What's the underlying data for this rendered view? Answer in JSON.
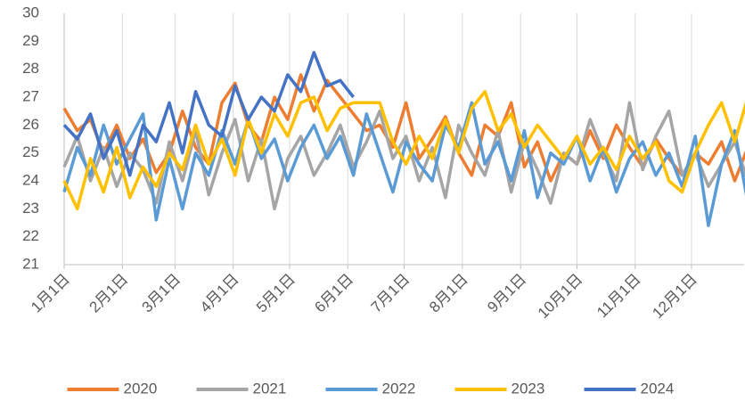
{
  "chart_data": {
    "type": "line",
    "x": [
      1,
      8,
      15,
      22,
      29,
      36,
      43,
      50,
      57,
      64,
      71,
      78,
      85,
      92,
      99,
      106,
      113,
      120,
      127,
      134,
      141,
      148,
      155,
      162,
      169,
      176,
      183,
      190,
      197,
      204,
      211,
      218,
      225,
      232,
      239,
      246,
      253,
      260,
      267,
      274,
      281,
      288,
      295,
      302,
      309,
      316,
      323,
      330,
      337,
      344,
      351,
      358,
      365
    ],
    "xlim": [
      1,
      363
    ],
    "xticks": [
      {
        "value": 1,
        "label": "1月1日"
      },
      {
        "value": 32,
        "label": "2月1日"
      },
      {
        "value": 60,
        "label": "3月1日"
      },
      {
        "value": 91,
        "label": "4月1日"
      },
      {
        "value": 121,
        "label": "5月1日"
      },
      {
        "value": 152,
        "label": "6月1日"
      },
      {
        "value": 182,
        "label": "7月1日"
      },
      {
        "value": 213,
        "label": "8月1日"
      },
      {
        "value": 244,
        "label": "9月1日"
      },
      {
        "value": 274,
        "label": "10月1日"
      },
      {
        "value": 305,
        "label": "11月1日"
      },
      {
        "value": 335,
        "label": "12月1日"
      }
    ],
    "ylim": [
      21,
      30
    ],
    "yticks": [
      21,
      22,
      23,
      24,
      25,
      26,
      27,
      28,
      29,
      30
    ],
    "grid": "x",
    "legend": "bottom",
    "series": [
      {
        "name": "2020",
        "color": "#ED7D31",
        "values": [
          26.6,
          25.8,
          26.2,
          25.0,
          26.0,
          24.8,
          25.5,
          24.3,
          25.0,
          26.5,
          25.2,
          24.6,
          26.8,
          27.5,
          26.0,
          25.4,
          27.0,
          26.2,
          27.8,
          26.5,
          27.6,
          27.0,
          26.4,
          25.8,
          26.0,
          25.2,
          26.8,
          24.8,
          25.5,
          26.3,
          25.0,
          24.2,
          26.0,
          25.6,
          26.8,
          24.5,
          25.4,
          24.0,
          25.0,
          24.6,
          25.8,
          24.8,
          26.0,
          25.2,
          24.5,
          25.5,
          24.8,
          24.2,
          25.0,
          24.6,
          25.4,
          24.0,
          25.2
        ]
      },
      {
        "name": "2021",
        "color": "#A5A5A5",
        "values": [
          24.5,
          25.6,
          24.0,
          25.2,
          23.8,
          25.0,
          24.4,
          23.2,
          25.4,
          24.0,
          25.8,
          23.5,
          25.0,
          26.2,
          24.0,
          25.5,
          23.0,
          24.8,
          25.6,
          24.2,
          25.0,
          26.0,
          24.5,
          25.4,
          26.5,
          24.8,
          25.6,
          24.0,
          25.2,
          23.4,
          26.0,
          25.0,
          24.2,
          25.8,
          23.6,
          25.4,
          24.4,
          23.2,
          25.0,
          24.6,
          26.2,
          25.0,
          24.0,
          26.8,
          24.4,
          25.6,
          26.5,
          24.2,
          25.0,
          23.8,
          24.6,
          25.4,
          24.0
        ]
      },
      {
        "name": "2022",
        "color": "#5B9BD5",
        "values": [
          23.6,
          25.2,
          24.2,
          26.0,
          24.6,
          25.5,
          26.4,
          22.6,
          24.8,
          23.0,
          25.0,
          24.2,
          25.8,
          24.6,
          26.2,
          24.8,
          25.5,
          24.0,
          25.2,
          26.0,
          24.8,
          25.6,
          24.2,
          26.4,
          25.0,
          23.6,
          25.4,
          24.6,
          24.0,
          26.0,
          25.2,
          26.8,
          24.6,
          25.4,
          24.0,
          25.8,
          23.4,
          25.0,
          24.6,
          25.6,
          24.0,
          25.2,
          23.6,
          24.8,
          25.4,
          24.2,
          25.0,
          23.8,
          25.6,
          22.4,
          24.6,
          25.8,
          23.2
        ]
      },
      {
        "name": "2023",
        "color": "#FFC000",
        "values": [
          24.0,
          23.0,
          24.8,
          23.6,
          25.2,
          23.4,
          24.5,
          23.8,
          25.0,
          24.4,
          26.0,
          24.6,
          25.5,
          24.2,
          26.2,
          25.0,
          26.4,
          25.6,
          26.8,
          27.0,
          25.8,
          26.6,
          26.8,
          26.8,
          26.8,
          25.4,
          24.6,
          25.6,
          24.8,
          26.2,
          25.0,
          26.6,
          27.2,
          25.8,
          26.4,
          25.2,
          26.0,
          25.4,
          24.8,
          25.6,
          24.6,
          25.2,
          24.4,
          25.6,
          24.8,
          25.4,
          24.0,
          23.6,
          25.0,
          26.0,
          26.8,
          25.4,
          27.0
        ]
      },
      {
        "name": "2024",
        "color": "#4472C4",
        "values": [
          26.0,
          25.5,
          26.4,
          24.8,
          25.8,
          24.2,
          26.0,
          25.4,
          26.8,
          25.0,
          27.2,
          26.0,
          25.6,
          27.4,
          26.2,
          27.0,
          26.5,
          27.8,
          27.2,
          28.6,
          27.4,
          27.6,
          27.0,
          null,
          null,
          null,
          null,
          null,
          null,
          null,
          null,
          null,
          null,
          null,
          null,
          null,
          null,
          null,
          null,
          null,
          null,
          null,
          null,
          null,
          null,
          null,
          null,
          null,
          null,
          null,
          null,
          null,
          null
        ]
      }
    ]
  }
}
